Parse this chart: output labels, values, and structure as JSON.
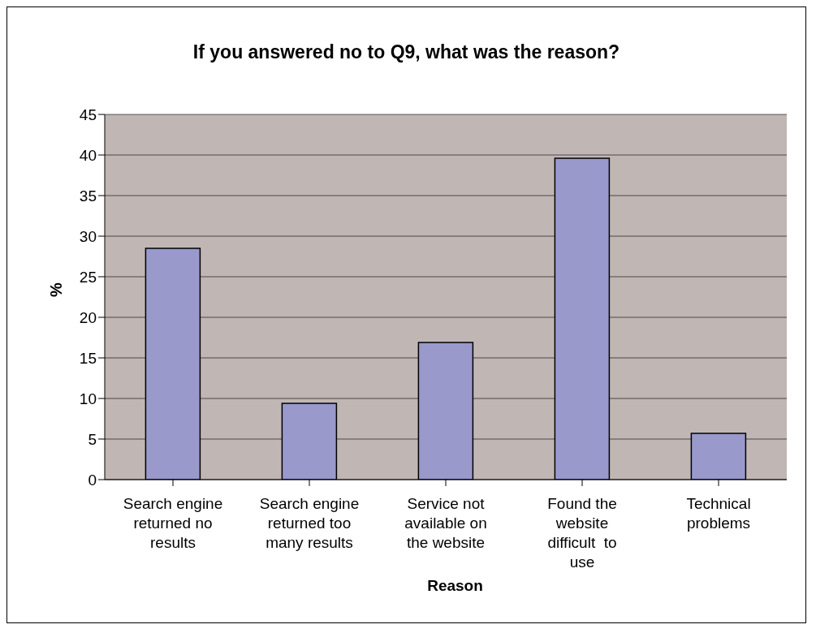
{
  "chart_data": {
    "type": "bar",
    "title": "If you answered no to Q9, what was the reason?",
    "xlabel": "Reason",
    "ylabel": "%",
    "categories": [
      "Search engine returned no results",
      "Search engine returned too many results",
      "Service not available on the website",
      "Found the website difficult  to use",
      "Technical problems"
    ],
    "values": [
      28.5,
      9.4,
      16.9,
      39.6,
      5.7
    ],
    "color": "#9999cc",
    "ylim": [
      0,
      45
    ],
    "yticks": [
      0,
      5,
      10,
      15,
      20,
      25,
      30,
      35,
      40,
      45
    ],
    "grid": "y",
    "legend": false
  }
}
